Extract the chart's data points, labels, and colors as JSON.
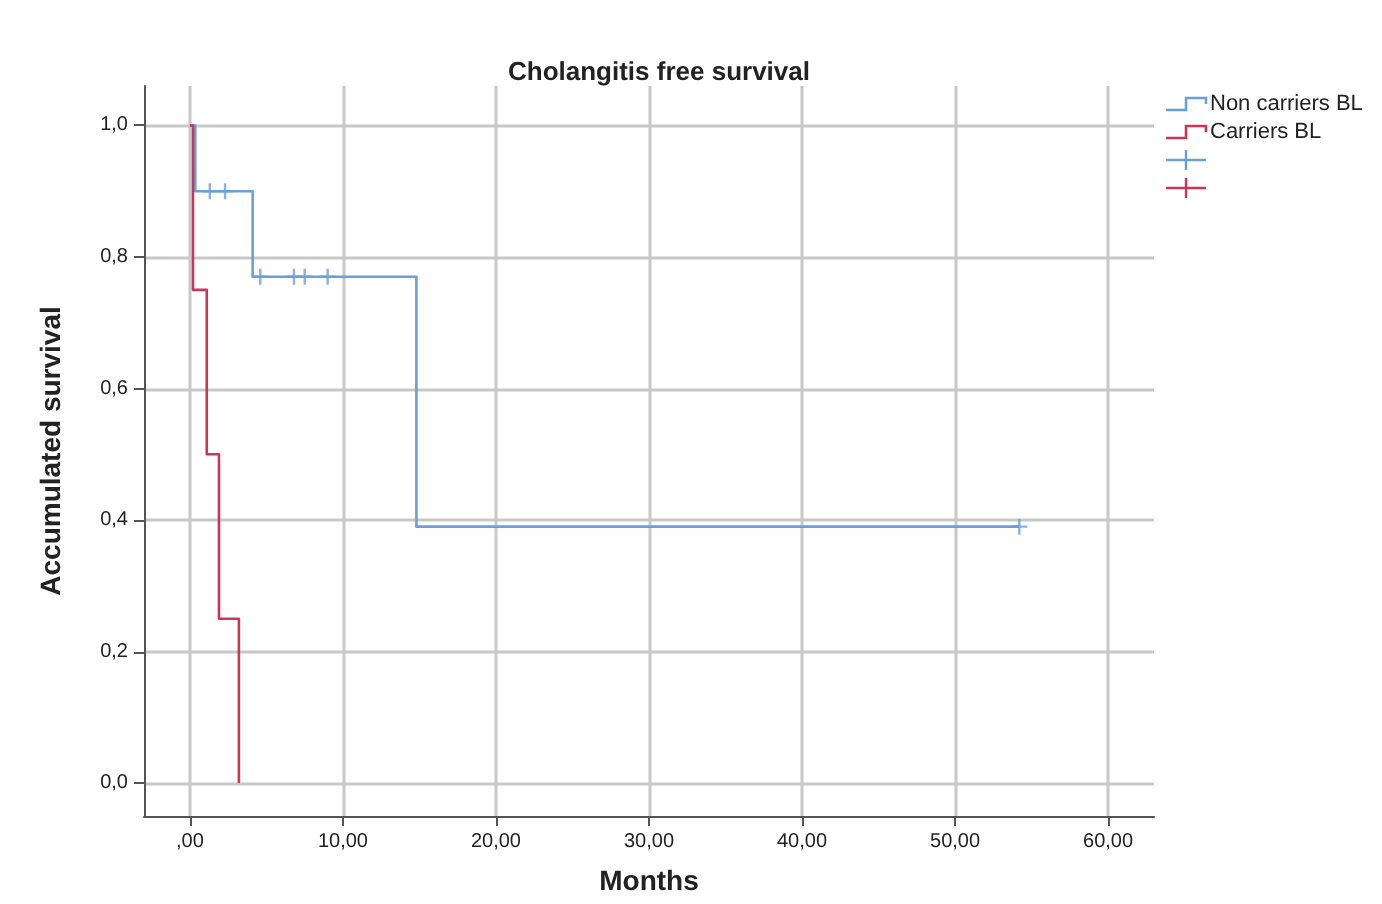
{
  "chart_data": {
    "type": "step",
    "title": "Cholangitis free survival",
    "xlabel": "Months",
    "ylabel": "Accumulated survival",
    "xlim": [
      -3,
      63
    ],
    "ylim": [
      -0.05,
      1.06
    ],
    "xticks": [
      {
        "value": 0,
        "label": ",00"
      },
      {
        "value": 10,
        "label": "10,00"
      },
      {
        "value": 20,
        "label": "20,00"
      },
      {
        "value": 30,
        "label": "30,00"
      },
      {
        "value": 40,
        "label": "40,00"
      },
      {
        "value": 50,
        "label": "50,00"
      },
      {
        "value": 60,
        "label": "60,00"
      }
    ],
    "yticks": [
      {
        "value": 0,
        "label": "0,0"
      },
      {
        "value": 0.2,
        "label": "0,2"
      },
      {
        "value": 0.4,
        "label": "0,4"
      },
      {
        "value": 0.6,
        "label": "0,6"
      },
      {
        "value": 0.8,
        "label": "0,8"
      },
      {
        "value": 1,
        "label": "1,0"
      }
    ],
    "grid": true,
    "legend": "top right",
    "series": [
      {
        "name": "Non carriers BL",
        "color": "#6a9fd8",
        "x": [
          0,
          0.35,
          4.1,
          14.8,
          54.2
        ],
        "values": [
          1,
          0.9,
          0.77,
          0.39,
          0.39
        ]
      },
      {
        "name": "Carriers BL",
        "color": "#c8375a",
        "x": [
          0,
          0.2,
          1.1,
          1.9,
          3.2
        ],
        "values": [
          1,
          0.75,
          0.5,
          0.25,
          0
        ]
      },
      {
        "type": "scatter",
        "marker": "cross",
        "color": "#6a9fd8",
        "x": [
          1.3,
          2.3,
          4.6,
          6.8,
          7.5,
          9.0,
          54.2
        ],
        "values": [
          0.9,
          0.9,
          0.77,
          0.77,
          0.77,
          0.77,
          0.39
        ]
      },
      {
        "type": "scatter",
        "marker": "cross",
        "color": "#c8375a"
      }
    ]
  }
}
